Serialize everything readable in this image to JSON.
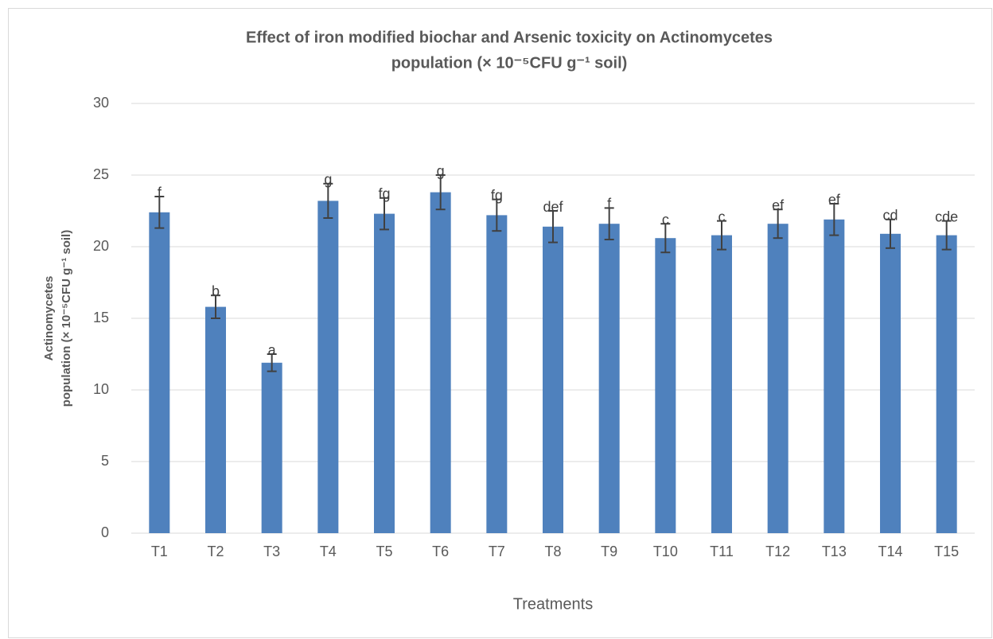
{
  "chart_data": {
    "type": "bar",
    "title": [
      "Effect of iron modified biochar and Arsenic toxicity on Actinomycetes",
      "population  (× 10⁻⁵CFU g⁻¹ soil)"
    ],
    "y_label": [
      "Actinomycetes",
      "population  (× 10⁻⁵CFU g⁻¹ soil)"
    ],
    "x_label": "Treatments",
    "categories": [
      "T1",
      "T2",
      "T3",
      "T4",
      "T5",
      "T6",
      "T7",
      "T8",
      "T9",
      "T10",
      "T11",
      "T12",
      "T13",
      "T14",
      "T15"
    ],
    "values": [
      22.4,
      15.8,
      11.9,
      23.2,
      22.3,
      23.8,
      22.2,
      21.4,
      21.6,
      20.6,
      20.8,
      21.6,
      21.9,
      20.9,
      20.8
    ],
    "errors": [
      1.1,
      0.8,
      0.6,
      1.2,
      1.1,
      1.2,
      1.1,
      1.1,
      1.1,
      1.0,
      1.0,
      1.0,
      1.1,
      1.0,
      1.0
    ],
    "significance_letters": [
      "f",
      "b",
      "a",
      "g",
      "fg",
      "g",
      "fg",
      "def",
      "f",
      "c",
      "c",
      "ef",
      "ef",
      "cd",
      "cde"
    ],
    "color": "#4f81bd",
    "ylim": [
      0,
      30
    ],
    "yticks": [
      0,
      5,
      10,
      15,
      20,
      25,
      30
    ],
    "grid": true
  }
}
